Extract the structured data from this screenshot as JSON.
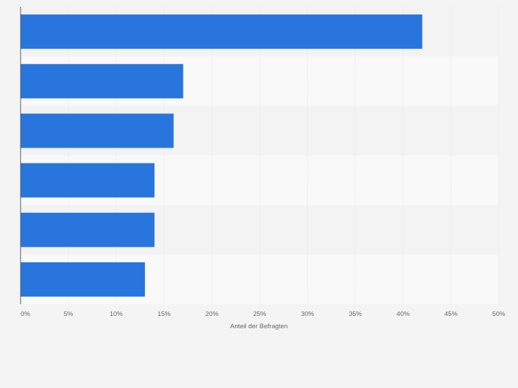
{
  "colors": {
    "bar": "#2876dd",
    "band_light": "#f9f9f9",
    "band_dark": "#f3f3f3",
    "grid": "#dedede",
    "axis": "#555555",
    "tick_text": "#666666"
  },
  "chart_data": {
    "type": "bar",
    "orientation": "horizontal",
    "categories": [
      "",
      "",
      "",
      "",
      "",
      ""
    ],
    "values": [
      42,
      17,
      16,
      14,
      14,
      13
    ],
    "xlabel": "Anteil der Befragten",
    "ylabel": "",
    "xlim": [
      0,
      50
    ],
    "ticks": [
      0,
      5,
      10,
      15,
      20,
      25,
      30,
      35,
      40,
      45,
      50
    ],
    "tick_labels": [
      "0%",
      "5%",
      "10%",
      "15%",
      "20%",
      "25%",
      "30%",
      "35%",
      "40%",
      "45%",
      "50%"
    ],
    "grid": true,
    "legend": "none"
  }
}
